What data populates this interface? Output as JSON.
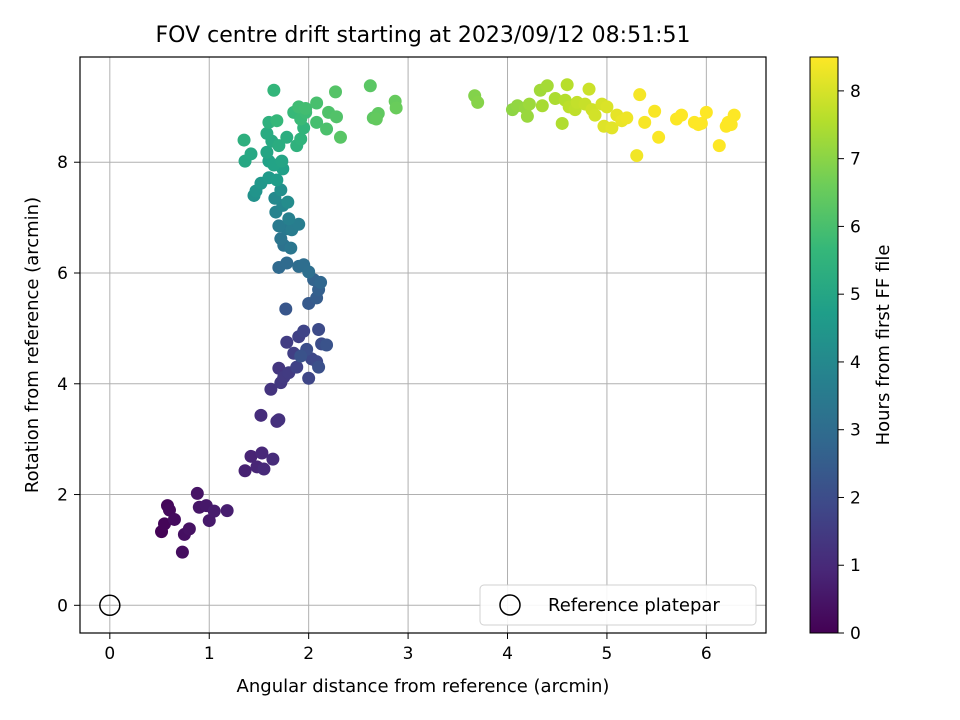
{
  "chart_data": {
    "type": "scatter",
    "title": "FOV centre drift starting at 2023/09/12 08:51:51",
    "xlabel": "Angular distance from reference (arcmin)",
    "ylabel": "Rotation from reference (arcmin)",
    "xlim": [
      -0.3,
      6.6
    ],
    "ylim": [
      -0.5,
      9.9
    ],
    "xticks": [
      0,
      1,
      2,
      3,
      4,
      5,
      6
    ],
    "yticks": [
      0,
      2,
      4,
      6,
      8
    ],
    "grid": true,
    "colormap": "viridis",
    "colorbar": {
      "label": "Hours from first FF file",
      "range": [
        0,
        8.5
      ],
      "ticks": [
        0,
        1,
        2,
        3,
        4,
        5,
        6,
        7,
        8
      ]
    },
    "legend": {
      "position": "lower-right",
      "entries": [
        {
          "label": "Reference platepar",
          "marker": "hollow-circle",
          "color": "#000000"
        }
      ]
    },
    "reference_point": {
      "x": 0,
      "y": 0
    },
    "series": [
      {
        "marker": "filled-circle",
        "points": [
          {
            "x": 0.52,
            "y": 1.33,
            "h": 0.05
          },
          {
            "x": 0.55,
            "y": 1.47,
            "h": 0.1
          },
          {
            "x": 0.58,
            "y": 1.8,
            "h": 0.15
          },
          {
            "x": 0.6,
            "y": 1.72,
            "h": 0.2
          },
          {
            "x": 0.65,
            "y": 1.55,
            "h": 0.25
          },
          {
            "x": 0.73,
            "y": 0.96,
            "h": 0.3
          },
          {
            "x": 0.75,
            "y": 1.28,
            "h": 0.35
          },
          {
            "x": 0.8,
            "y": 1.38,
            "h": 0.4
          },
          {
            "x": 0.88,
            "y": 2.02,
            "h": 0.45
          },
          {
            "x": 0.9,
            "y": 1.77,
            "h": 0.5
          },
          {
            "x": 0.97,
            "y": 1.8,
            "h": 0.55
          },
          {
            "x": 1.0,
            "y": 1.53,
            "h": 0.6
          },
          {
            "x": 1.05,
            "y": 1.7,
            "h": 0.65
          },
          {
            "x": 1.18,
            "y": 1.71,
            "h": 0.7
          },
          {
            "x": 1.36,
            "y": 2.43,
            "h": 0.8
          },
          {
            "x": 1.42,
            "y": 2.69,
            "h": 0.85
          },
          {
            "x": 1.48,
            "y": 2.5,
            "h": 0.9
          },
          {
            "x": 1.53,
            "y": 2.75,
            "h": 0.95
          },
          {
            "x": 1.55,
            "y": 2.46,
            "h": 1.0
          },
          {
            "x": 1.64,
            "y": 2.64,
            "h": 1.05
          },
          {
            "x": 1.52,
            "y": 3.43,
            "h": 1.1
          },
          {
            "x": 1.68,
            "y": 3.32,
            "h": 1.15
          },
          {
            "x": 1.7,
            "y": 3.35,
            "h": 1.2
          },
          {
            "x": 1.62,
            "y": 3.9,
            "h": 1.3
          },
          {
            "x": 1.7,
            "y": 4.28,
            "h": 1.35
          },
          {
            "x": 1.72,
            "y": 4.02,
            "h": 1.4
          },
          {
            "x": 1.75,
            "y": 4.12,
            "h": 1.45
          },
          {
            "x": 1.8,
            "y": 4.2,
            "h": 1.5
          },
          {
            "x": 1.78,
            "y": 4.75,
            "h": 1.55
          },
          {
            "x": 1.85,
            "y": 4.55,
            "h": 1.6
          },
          {
            "x": 1.9,
            "y": 4.85,
            "h": 1.65
          },
          {
            "x": 1.88,
            "y": 4.3,
            "h": 1.7
          },
          {
            "x": 1.95,
            "y": 4.95,
            "h": 1.75
          },
          {
            "x": 2.0,
            "y": 4.1,
            "h": 1.8
          },
          {
            "x": 2.03,
            "y": 4.45,
            "h": 1.85
          },
          {
            "x": 2.08,
            "y": 4.4,
            "h": 1.9
          },
          {
            "x": 2.1,
            "y": 4.98,
            "h": 1.95
          },
          {
            "x": 2.13,
            "y": 4.72,
            "h": 2.0
          },
          {
            "x": 1.98,
            "y": 4.62,
            "h": 2.05
          },
          {
            "x": 2.1,
            "y": 4.3,
            "h": 2.1
          },
          {
            "x": 1.92,
            "y": 4.5,
            "h": 2.15
          },
          {
            "x": 2.18,
            "y": 4.7,
            "h": 2.2
          },
          {
            "x": 1.77,
            "y": 5.35,
            "h": 2.3
          },
          {
            "x": 2.0,
            "y": 5.45,
            "h": 2.4
          },
          {
            "x": 2.08,
            "y": 5.55,
            "h": 2.5
          },
          {
            "x": 2.1,
            "y": 5.7,
            "h": 2.6
          },
          {
            "x": 2.05,
            "y": 5.88,
            "h": 2.7
          },
          {
            "x": 2.12,
            "y": 5.83,
            "h": 2.8
          },
          {
            "x": 1.7,
            "y": 6.1,
            "h": 2.9
          },
          {
            "x": 1.78,
            "y": 6.18,
            "h": 2.95
          },
          {
            "x": 1.9,
            "y": 6.12,
            "h": 3.0
          },
          {
            "x": 1.95,
            "y": 6.15,
            "h": 3.05
          },
          {
            "x": 2.0,
            "y": 6.02,
            "h": 3.1
          },
          {
            "x": 1.75,
            "y": 6.5,
            "h": 3.2
          },
          {
            "x": 1.72,
            "y": 6.62,
            "h": 3.3
          },
          {
            "x": 1.82,
            "y": 6.45,
            "h": 3.35
          },
          {
            "x": 1.78,
            "y": 6.8,
            "h": 3.4
          },
          {
            "x": 1.7,
            "y": 6.85,
            "h": 3.5
          },
          {
            "x": 1.83,
            "y": 6.78,
            "h": 3.55
          },
          {
            "x": 1.9,
            "y": 6.88,
            "h": 3.6
          },
          {
            "x": 1.8,
            "y": 6.98,
            "h": 3.7
          },
          {
            "x": 1.67,
            "y": 7.1,
            "h": 3.8
          },
          {
            "x": 1.74,
            "y": 7.22,
            "h": 3.9
          },
          {
            "x": 1.66,
            "y": 7.35,
            "h": 4.0
          },
          {
            "x": 1.79,
            "y": 7.28,
            "h": 4.1
          },
          {
            "x": 1.72,
            "y": 7.5,
            "h": 4.2
          },
          {
            "x": 1.45,
            "y": 7.4,
            "h": 4.3
          },
          {
            "x": 1.47,
            "y": 7.48,
            "h": 4.4
          },
          {
            "x": 1.52,
            "y": 7.62,
            "h": 4.5
          },
          {
            "x": 1.6,
            "y": 7.72,
            "h": 4.6
          },
          {
            "x": 1.68,
            "y": 7.68,
            "h": 4.7
          },
          {
            "x": 1.74,
            "y": 7.88,
            "h": 4.8
          },
          {
            "x": 1.6,
            "y": 8.02,
            "h": 4.85
          },
          {
            "x": 1.65,
            "y": 7.95,
            "h": 4.9
          },
          {
            "x": 1.73,
            "y": 8.02,
            "h": 4.95
          },
          {
            "x": 1.58,
            "y": 8.18,
            "h": 5.0
          },
          {
            "x": 1.36,
            "y": 8.02,
            "h": 5.05
          },
          {
            "x": 1.42,
            "y": 8.15,
            "h": 5.1
          },
          {
            "x": 1.63,
            "y": 8.38,
            "h": 5.15
          },
          {
            "x": 1.58,
            "y": 8.52,
            "h": 5.2
          },
          {
            "x": 1.7,
            "y": 8.3,
            "h": 5.25
          },
          {
            "x": 1.78,
            "y": 8.45,
            "h": 5.3
          },
          {
            "x": 1.35,
            "y": 8.4,
            "h": 5.35
          },
          {
            "x": 1.6,
            "y": 8.72,
            "h": 5.4
          },
          {
            "x": 1.88,
            "y": 8.3,
            "h": 5.45
          },
          {
            "x": 1.92,
            "y": 8.42,
            "h": 5.5
          },
          {
            "x": 1.95,
            "y": 8.62,
            "h": 5.55
          },
          {
            "x": 1.65,
            "y": 9.3,
            "h": 5.6
          },
          {
            "x": 1.68,
            "y": 8.75,
            "h": 5.65
          },
          {
            "x": 1.85,
            "y": 8.9,
            "h": 5.7
          },
          {
            "x": 1.92,
            "y": 8.78,
            "h": 5.75
          },
          {
            "x": 1.97,
            "y": 8.9,
            "h": 5.8
          },
          {
            "x": 1.9,
            "y": 9.0,
            "h": 5.85
          },
          {
            "x": 1.97,
            "y": 8.97,
            "h": 5.9
          },
          {
            "x": 2.08,
            "y": 8.72,
            "h": 5.95
          },
          {
            "x": 2.08,
            "y": 9.07,
            "h": 6.0
          },
          {
            "x": 2.18,
            "y": 8.6,
            "h": 6.05
          },
          {
            "x": 2.2,
            "y": 8.9,
            "h": 6.1
          },
          {
            "x": 2.28,
            "y": 8.82,
            "h": 6.15
          },
          {
            "x": 2.27,
            "y": 9.27,
            "h": 6.2
          },
          {
            "x": 2.32,
            "y": 8.45,
            "h": 6.25
          },
          {
            "x": 2.62,
            "y": 9.38,
            "h": 6.3
          },
          {
            "x": 2.65,
            "y": 8.8,
            "h": 6.35
          },
          {
            "x": 2.7,
            "y": 8.88,
            "h": 6.4
          },
          {
            "x": 2.68,
            "y": 8.78,
            "h": 6.45
          },
          {
            "x": 2.87,
            "y": 9.1,
            "h": 6.5
          },
          {
            "x": 2.88,
            "y": 8.98,
            "h": 6.55
          },
          {
            "x": 3.67,
            "y": 9.2,
            "h": 6.9
          },
          {
            "x": 3.7,
            "y": 9.08,
            "h": 6.95
          },
          {
            "x": 4.05,
            "y": 8.95,
            "h": 7.05
          },
          {
            "x": 4.1,
            "y": 9.02,
            "h": 7.1
          },
          {
            "x": 4.18,
            "y": 8.98,
            "h": 7.15
          },
          {
            "x": 4.2,
            "y": 8.83,
            "h": 7.2
          },
          {
            "x": 4.22,
            "y": 9.05,
            "h": 7.25
          },
          {
            "x": 4.33,
            "y": 9.3,
            "h": 7.3
          },
          {
            "x": 4.4,
            "y": 9.38,
            "h": 7.35
          },
          {
            "x": 4.35,
            "y": 9.02,
            "h": 7.4
          },
          {
            "x": 4.48,
            "y": 9.15,
            "h": 7.45
          },
          {
            "x": 4.55,
            "y": 8.7,
            "h": 7.5
          },
          {
            "x": 4.58,
            "y": 9.12,
            "h": 7.55
          },
          {
            "x": 4.6,
            "y": 9.4,
            "h": 7.6
          },
          {
            "x": 4.62,
            "y": 9.0,
            "h": 7.65
          },
          {
            "x": 4.68,
            "y": 8.95,
            "h": 7.7
          },
          {
            "x": 4.7,
            "y": 9.08,
            "h": 7.75
          },
          {
            "x": 4.78,
            "y": 9.05,
            "h": 7.8
          },
          {
            "x": 4.82,
            "y": 9.32,
            "h": 7.85
          },
          {
            "x": 4.85,
            "y": 8.95,
            "h": 7.9
          },
          {
            "x": 4.88,
            "y": 8.85,
            "h": 7.95
          },
          {
            "x": 4.95,
            "y": 9.05,
            "h": 8.0
          },
          {
            "x": 5.0,
            "y": 9.0,
            "h": 8.05
          },
          {
            "x": 4.97,
            "y": 8.65,
            "h": 8.1
          },
          {
            "x": 5.05,
            "y": 8.62,
            "h": 8.15
          },
          {
            "x": 5.1,
            "y": 8.85,
            "h": 8.2
          },
          {
            "x": 5.15,
            "y": 8.75,
            "h": 8.25
          },
          {
            "x": 5.2,
            "y": 8.8,
            "h": 8.3
          },
          {
            "x": 5.3,
            "y": 8.12,
            "h": 8.35
          },
          {
            "x": 5.33,
            "y": 9.22,
            "h": 8.4
          },
          {
            "x": 5.38,
            "y": 8.72,
            "h": 8.42
          },
          {
            "x": 5.48,
            "y": 8.92,
            "h": 8.44
          },
          {
            "x": 5.52,
            "y": 8.45,
            "h": 8.46
          },
          {
            "x": 5.7,
            "y": 8.78,
            "h": 8.48
          },
          {
            "x": 5.75,
            "y": 8.85,
            "h": 8.5
          },
          {
            "x": 5.88,
            "y": 8.72,
            "h": 8.5
          },
          {
            "x": 5.92,
            "y": 8.68,
            "h": 8.5
          },
          {
            "x": 5.95,
            "y": 8.7,
            "h": 8.5
          },
          {
            "x": 6.0,
            "y": 8.9,
            "h": 8.5
          },
          {
            "x": 6.13,
            "y": 8.3,
            "h": 8.5
          },
          {
            "x": 6.2,
            "y": 8.65,
            "h": 8.5
          },
          {
            "x": 6.22,
            "y": 8.72,
            "h": 8.5
          },
          {
            "x": 6.25,
            "y": 8.68,
            "h": 8.5
          },
          {
            "x": 6.28,
            "y": 8.85,
            "h": 8.5
          }
        ]
      }
    ]
  }
}
